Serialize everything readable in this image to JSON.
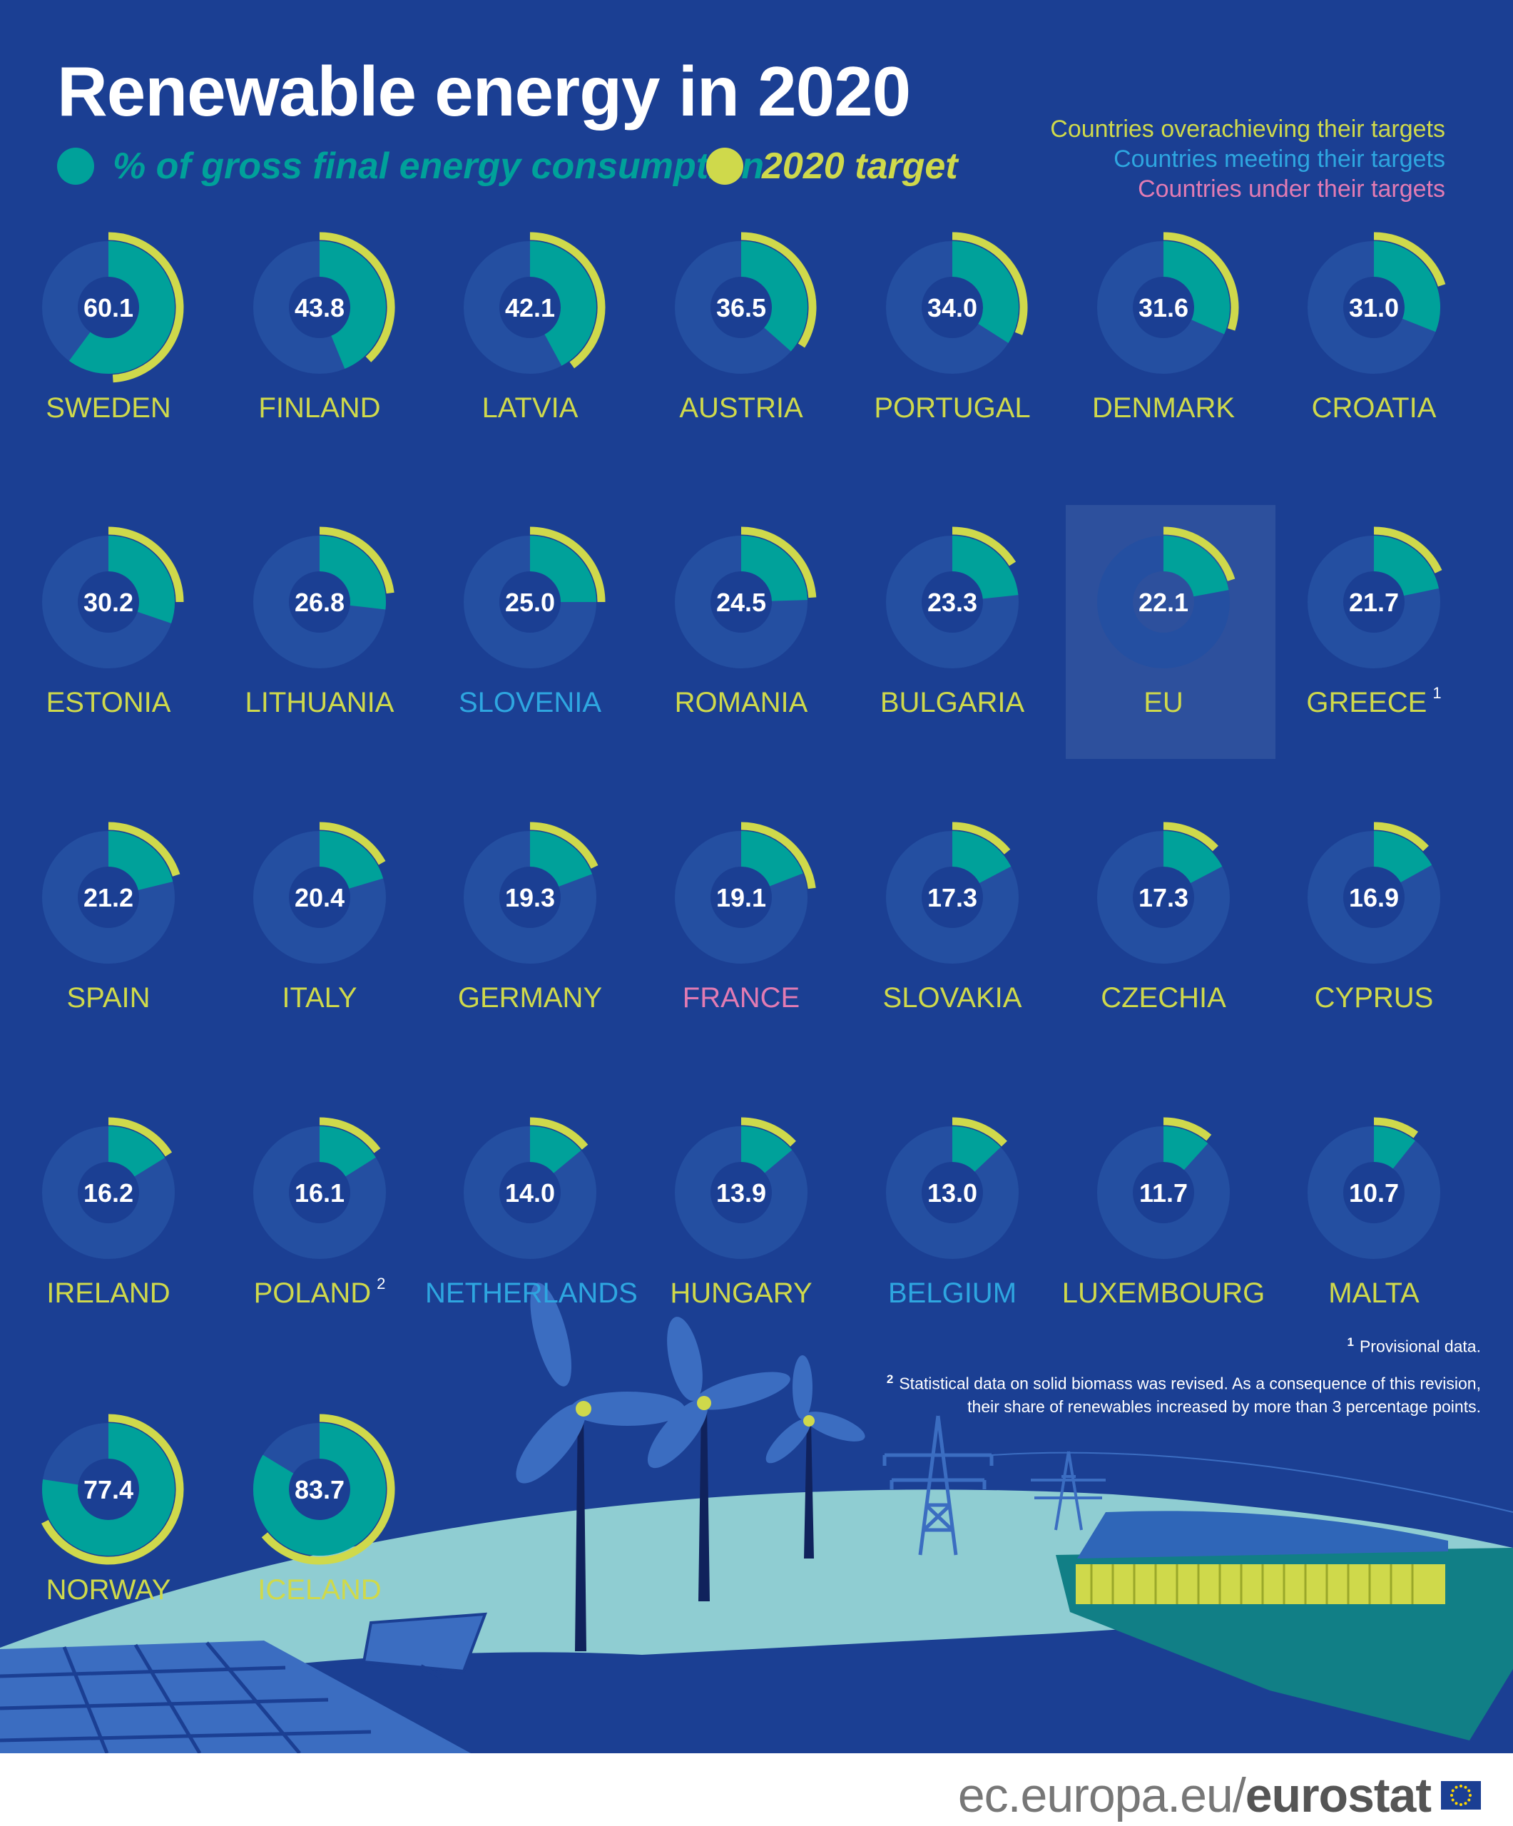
{
  "title": "Renewable energy in 2020",
  "legend": {
    "share_label": "% of gross final energy consumption",
    "target_label": "2020 target",
    "share_color": "#00a19a",
    "target_color": "#cfd94b"
  },
  "status_key": {
    "over": "Countries overachieving their targets",
    "meet": "Countries meeting their targets",
    "under": "Countries under their targets",
    "over_color": "#cfd94b",
    "meet_color": "#2ea6e0",
    "under_color": "#e27bb3"
  },
  "footnotes": {
    "n1_mark": "1",
    "n1_text": "Provisional data.",
    "n2_mark": "2",
    "n2_line1": "Statistical data on solid biomass was revised. As a consequence of this revision,",
    "n2_line2": "their share of renewables increased by more than 3 percentage points."
  },
  "footer": {
    "site": "ec.europa.eu/",
    "brand": "eurostat"
  },
  "chart_data": {
    "type": "donut-grid",
    "unit": "% of gross final energy consumption",
    "items": [
      {
        "country": "SWEDEN",
        "value": 60.1,
        "value_label": "60.1",
        "target": 49,
        "status": "over"
      },
      {
        "country": "FINLAND",
        "value": 43.8,
        "value_label": "43.8",
        "target": 38,
        "status": "over"
      },
      {
        "country": "LATVIA",
        "value": 42.1,
        "value_label": "42.1",
        "target": 40,
        "status": "over"
      },
      {
        "country": "AUSTRIA",
        "value": 36.5,
        "value_label": "36.5",
        "target": 34,
        "status": "over"
      },
      {
        "country": "PORTUGAL",
        "value": 34.0,
        "value_label": "34.0",
        "target": 31,
        "status": "over"
      },
      {
        "country": "DENMARK",
        "value": 31.6,
        "value_label": "31.6",
        "target": 30,
        "status": "over"
      },
      {
        "country": "CROATIA",
        "value": 31.0,
        "value_label": "31.0",
        "target": 20,
        "status": "over"
      },
      {
        "country": "ESTONIA",
        "value": 30.2,
        "value_label": "30.2",
        "target": 25,
        "status": "over"
      },
      {
        "country": "LITHUANIA",
        "value": 26.8,
        "value_label": "26.8",
        "target": 23,
        "status": "over"
      },
      {
        "country": "SLOVENIA",
        "value": 25.0,
        "value_label": "25.0",
        "target": 25,
        "status": "meet"
      },
      {
        "country": "ROMANIA",
        "value": 24.5,
        "value_label": "24.5",
        "target": 24,
        "status": "over"
      },
      {
        "country": "BULGARIA",
        "value": 23.3,
        "value_label": "23.3",
        "target": 16,
        "status": "over"
      },
      {
        "country": "EU",
        "value": 22.1,
        "value_label": "22.1",
        "target": 20,
        "status": "over",
        "highlight": true
      },
      {
        "country": "GREECE",
        "value": 21.7,
        "value_label": "21.7",
        "target": 18,
        "status": "over",
        "note": "1"
      },
      {
        "country": "SPAIN",
        "value": 21.2,
        "value_label": "21.2",
        "target": 20,
        "status": "over"
      },
      {
        "country": "ITALY",
        "value": 20.4,
        "value_label": "20.4",
        "target": 17,
        "status": "over"
      },
      {
        "country": "GERMANY",
        "value": 19.3,
        "value_label": "19.3",
        "target": 18,
        "status": "over"
      },
      {
        "country": "FRANCE",
        "value": 19.1,
        "value_label": "19.1",
        "target": 23,
        "status": "under"
      },
      {
        "country": "SLOVAKIA",
        "value": 17.3,
        "value_label": "17.3",
        "target": 14,
        "status": "over"
      },
      {
        "country": "CZECHIA",
        "value": 17.3,
        "value_label": "17.3",
        "target": 13,
        "status": "over"
      },
      {
        "country": "CYPRUS",
        "value": 16.9,
        "value_label": "16.9",
        "target": 13,
        "status": "over"
      },
      {
        "country": "IRELAND",
        "value": 16.2,
        "value_label": "16.2",
        "target": 16,
        "status": "over"
      },
      {
        "country": "POLAND",
        "value": 16.1,
        "value_label": "16.1",
        "target": 15,
        "status": "over",
        "note": "2"
      },
      {
        "country": "NETHERLANDS",
        "value": 14.0,
        "value_label": "14.0",
        "target": 14,
        "status": "meet"
      },
      {
        "country": "HUNGARY",
        "value": 13.9,
        "value_label": "13.9",
        "target": 13,
        "status": "over"
      },
      {
        "country": "BELGIUM",
        "value": 13.0,
        "value_label": "13.0",
        "target": 13,
        "status": "meet"
      },
      {
        "country": "LUXEMBOURG",
        "value": 11.7,
        "value_label": "11.7",
        "target": 11,
        "status": "over"
      },
      {
        "country": "MALTA",
        "value": 10.7,
        "value_label": "10.7",
        "target": 10,
        "status": "over"
      },
      {
        "country": "NORWAY",
        "value": 77.4,
        "value_label": "77.4",
        "target": 67.5,
        "status": "over"
      },
      {
        "country": "ICELAND",
        "value": 83.7,
        "value_label": "83.7",
        "target": 64,
        "status": "over"
      }
    ]
  }
}
